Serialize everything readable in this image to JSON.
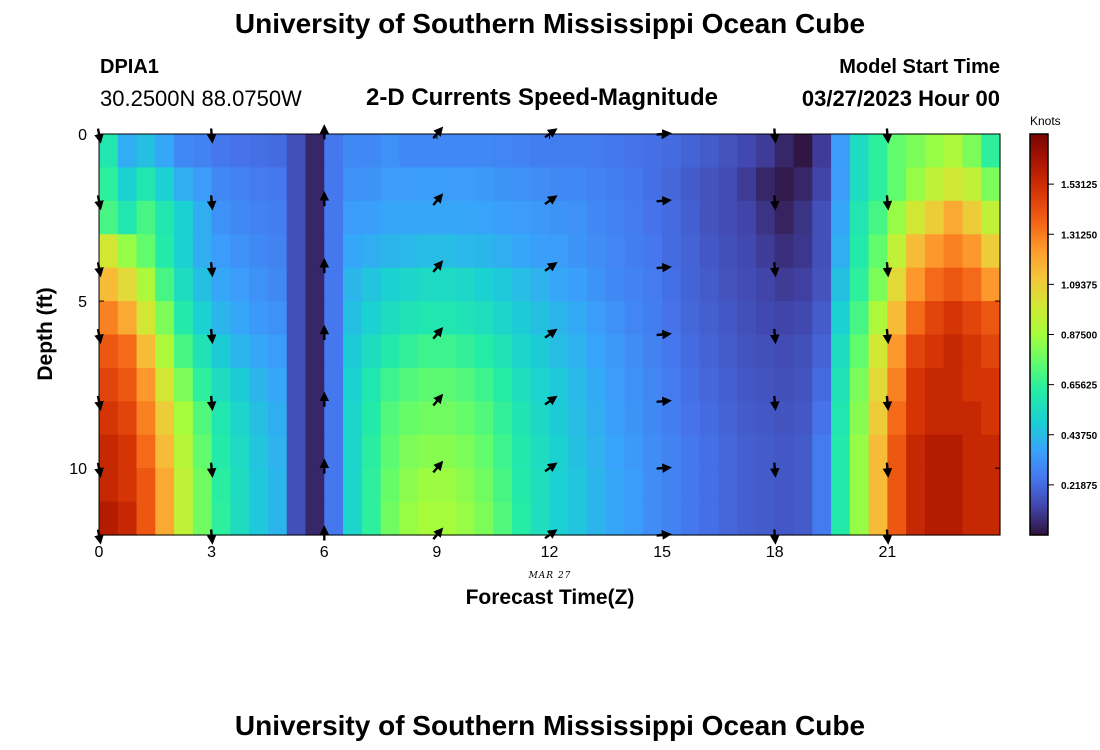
{
  "header": {
    "title": "University of Southern Mississippi Ocean Cube",
    "station_id": "DPIA1",
    "station_coords": "30.2500N  88.0750W",
    "chart_title": "2-D Currents Speed-Magnitude",
    "model_start_label": "Model Start Time",
    "model_start_value": "03/27/2023 Hour 00"
  },
  "footer": {
    "title": "University of Southern Mississippi Ocean Cube"
  },
  "chart_data": {
    "type": "heatmap",
    "title": "2-D Currents Speed-Magnitude",
    "xlabel": "Forecast Time(Z)",
    "ylabel": "Depth (ft)",
    "date_label": "MAR 27",
    "xlim": [
      0,
      24
    ],
    "ylim": [
      0,
      12
    ],
    "x_ticks": [
      0,
      3,
      6,
      9,
      12,
      15,
      18,
      21
    ],
    "x_tick_labels": [
      "0",
      "3",
      "6",
      "9",
      "12",
      "15",
      "18",
      "21"
    ],
    "y_ticks": [
      0,
      5,
      10
    ],
    "y_tick_labels": [
      "0",
      "5",
      "10"
    ],
    "colorbar": {
      "title": "Knots",
      "min": 0,
      "max": 1.75,
      "tick_values": [
        1.53125,
        1.3125,
        1.09375,
        0.875,
        0.65625,
        0.4375,
        0.21875
      ],
      "tick_labels": [
        "1.53125",
        "1.31250",
        "1.09375",
        "0.87500",
        "0.65625",
        "0.43750",
        "0.21875"
      ]
    },
    "grid": false,
    "x_bins": 48,
    "depth_bins": 12,
    "speed_knots": [
      [
        0.6,
        0.4,
        0.45,
        0.38,
        0.3,
        0.28,
        0.25,
        0.24,
        0.23,
        0.22,
        0.15,
        0.05,
        0.25,
        0.3,
        0.3,
        0.32,
        0.3,
        0.3,
        0.3,
        0.3,
        0.3,
        0.29,
        0.28,
        0.27,
        0.27,
        0.27,
        0.26,
        0.25,
        0.24,
        0.23,
        0.22,
        0.2,
        0.18,
        0.16,
        0.13,
        0.1,
        0.05,
        0.01,
        0.1,
        0.35,
        0.55,
        0.65,
        0.75,
        0.8,
        0.85,
        0.9,
        0.8,
        0.65
      ],
      [
        0.65,
        0.5,
        0.6,
        0.5,
        0.4,
        0.35,
        0.3,
        0.28,
        0.26,
        0.25,
        0.15,
        0.05,
        0.25,
        0.32,
        0.33,
        0.35,
        0.35,
        0.35,
        0.35,
        0.35,
        0.34,
        0.33,
        0.32,
        0.31,
        0.3,
        0.3,
        0.28,
        0.27,
        0.25,
        0.23,
        0.21,
        0.18,
        0.16,
        0.14,
        0.1,
        0.05,
        0.02,
        0.05,
        0.12,
        0.35,
        0.55,
        0.65,
        0.75,
        0.85,
        0.95,
        1.0,
        0.95,
        0.8
      ],
      [
        0.7,
        0.6,
        0.7,
        0.6,
        0.5,
        0.4,
        0.32,
        0.3,
        0.28,
        0.27,
        0.15,
        0.05,
        0.25,
        0.35,
        0.36,
        0.38,
        0.38,
        0.38,
        0.38,
        0.38,
        0.37,
        0.36,
        0.35,
        0.34,
        0.33,
        0.32,
        0.3,
        0.28,
        0.26,
        0.24,
        0.22,
        0.19,
        0.16,
        0.14,
        0.12,
        0.08,
        0.04,
        0.08,
        0.15,
        0.38,
        0.6,
        0.7,
        0.85,
        1.0,
        1.1,
        1.2,
        1.1,
        0.95
      ],
      [
        1.0,
        0.85,
        0.75,
        0.62,
        0.5,
        0.4,
        0.35,
        0.32,
        0.3,
        0.28,
        0.15,
        0.05,
        0.25,
        0.38,
        0.4,
        0.42,
        0.43,
        0.44,
        0.44,
        0.43,
        0.42,
        0.4,
        0.38,
        0.36,
        0.35,
        0.33,
        0.31,
        0.29,
        0.27,
        0.25,
        0.22,
        0.2,
        0.17,
        0.15,
        0.13,
        0.1,
        0.07,
        0.09,
        0.15,
        0.4,
        0.62,
        0.75,
        0.95,
        1.15,
        1.25,
        1.3,
        1.25,
        1.1
      ],
      [
        1.15,
        1.05,
        0.9,
        0.7,
        0.55,
        0.45,
        0.38,
        0.35,
        0.32,
        0.3,
        0.15,
        0.05,
        0.25,
        0.42,
        0.46,
        0.5,
        0.52,
        0.54,
        0.54,
        0.53,
        0.5,
        0.47,
        0.44,
        0.41,
        0.38,
        0.36,
        0.33,
        0.3,
        0.28,
        0.26,
        0.23,
        0.2,
        0.18,
        0.16,
        0.14,
        0.12,
        0.1,
        0.11,
        0.16,
        0.45,
        0.65,
        0.8,
        1.05,
        1.25,
        1.35,
        1.4,
        1.35,
        1.25
      ],
      [
        1.3,
        1.2,
        1.0,
        0.8,
        0.62,
        0.5,
        0.42,
        0.38,
        0.34,
        0.32,
        0.15,
        0.05,
        0.25,
        0.45,
        0.5,
        0.55,
        0.58,
        0.6,
        0.6,
        0.58,
        0.56,
        0.52,
        0.48,
        0.45,
        0.42,
        0.39,
        0.35,
        0.32,
        0.29,
        0.27,
        0.24,
        0.21,
        0.19,
        0.17,
        0.15,
        0.13,
        0.12,
        0.13,
        0.18,
        0.5,
        0.7,
        0.9,
        1.15,
        1.35,
        1.45,
        1.5,
        1.45,
        1.4
      ],
      [
        1.4,
        1.35,
        1.15,
        0.9,
        0.7,
        0.58,
        0.48,
        0.42,
        0.38,
        0.35,
        0.15,
        0.05,
        0.25,
        0.48,
        0.55,
        0.62,
        0.66,
        0.68,
        0.68,
        0.66,
        0.63,
        0.58,
        0.52,
        0.48,
        0.44,
        0.41,
        0.37,
        0.34,
        0.31,
        0.28,
        0.25,
        0.22,
        0.2,
        0.18,
        0.16,
        0.15,
        0.14,
        0.15,
        0.2,
        0.55,
        0.75,
        1.0,
        1.25,
        1.45,
        1.5,
        1.55,
        1.5,
        1.45
      ],
      [
        1.45,
        1.4,
        1.25,
        1.0,
        0.8,
        0.65,
        0.55,
        0.48,
        0.42,
        0.38,
        0.15,
        0.05,
        0.25,
        0.5,
        0.6,
        0.68,
        0.72,
        0.74,
        0.74,
        0.72,
        0.68,
        0.63,
        0.56,
        0.51,
        0.47,
        0.43,
        0.39,
        0.35,
        0.32,
        0.29,
        0.26,
        0.23,
        0.21,
        0.19,
        0.17,
        0.16,
        0.15,
        0.16,
        0.22,
        0.58,
        0.8,
        1.05,
        1.3,
        1.5,
        1.55,
        1.55,
        1.5,
        1.5
      ],
      [
        1.5,
        1.45,
        1.3,
        1.1,
        0.88,
        0.72,
        0.6,
        0.52,
        0.45,
        0.4,
        0.15,
        0.05,
        0.25,
        0.52,
        0.62,
        0.72,
        0.76,
        0.78,
        0.78,
        0.76,
        0.72,
        0.66,
        0.59,
        0.53,
        0.48,
        0.44,
        0.4,
        0.36,
        0.33,
        0.3,
        0.27,
        0.24,
        0.22,
        0.2,
        0.18,
        0.17,
        0.16,
        0.17,
        0.24,
        0.6,
        0.82,
        1.1,
        1.35,
        1.5,
        1.55,
        1.55,
        1.55,
        1.5
      ],
      [
        1.55,
        1.5,
        1.35,
        1.15,
        0.92,
        0.75,
        0.62,
        0.54,
        0.46,
        0.41,
        0.15,
        0.05,
        0.25,
        0.52,
        0.64,
        0.74,
        0.8,
        0.82,
        0.82,
        0.8,
        0.75,
        0.68,
        0.61,
        0.55,
        0.5,
        0.45,
        0.41,
        0.37,
        0.34,
        0.31,
        0.28,
        0.25,
        0.23,
        0.21,
        0.19,
        0.18,
        0.17,
        0.18,
        0.26,
        0.62,
        0.85,
        1.15,
        1.4,
        1.55,
        1.6,
        1.6,
        1.55,
        1.55
      ],
      [
        1.55,
        1.5,
        1.4,
        1.2,
        0.95,
        0.78,
        0.64,
        0.55,
        0.47,
        0.42,
        0.15,
        0.05,
        0.25,
        0.52,
        0.65,
        0.76,
        0.83,
        0.86,
        0.86,
        0.83,
        0.78,
        0.7,
        0.62,
        0.56,
        0.5,
        0.46,
        0.42,
        0.38,
        0.35,
        0.31,
        0.28,
        0.25,
        0.23,
        0.21,
        0.19,
        0.18,
        0.17,
        0.18,
        0.26,
        0.62,
        0.85,
        1.15,
        1.4,
        1.55,
        1.6,
        1.6,
        1.55,
        1.55
      ],
      [
        1.6,
        1.55,
        1.4,
        1.2,
        0.95,
        0.78,
        0.65,
        0.55,
        0.47,
        0.42,
        0.15,
        0.05,
        0.25,
        0.52,
        0.65,
        0.78,
        0.85,
        0.88,
        0.88,
        0.85,
        0.8,
        0.72,
        0.63,
        0.56,
        0.5,
        0.46,
        0.42,
        0.38,
        0.35,
        0.31,
        0.28,
        0.25,
        0.23,
        0.21,
        0.19,
        0.18,
        0.17,
        0.18,
        0.26,
        0.62,
        0.85,
        1.15,
        1.4,
        1.55,
        1.6,
        1.6,
        1.55,
        1.55
      ]
    ],
    "current_vectors": {
      "hours": [
        0,
        3,
        6,
        9,
        12,
        15,
        18,
        21
      ],
      "depths_ft": [
        0,
        2,
        4,
        6,
        8,
        10,
        12
      ],
      "direction_deg": [
        170,
        175,
        0,
        40,
        55,
        85,
        175,
        175
      ]
    }
  }
}
